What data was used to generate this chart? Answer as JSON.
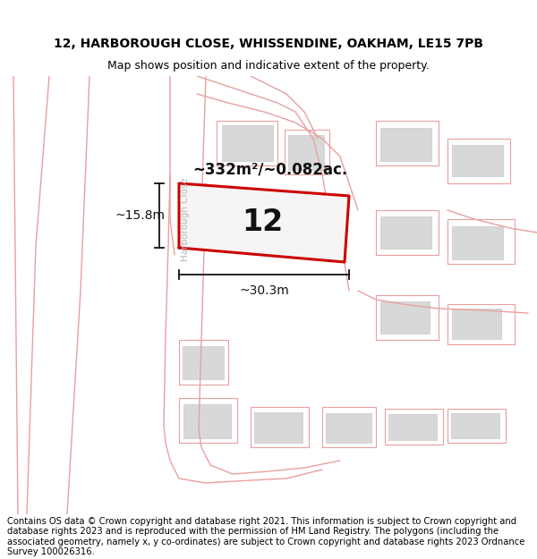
{
  "title_line1": "12, HARBOROUGH CLOSE, WHISSENDINE, OAKHAM, LE15 7PB",
  "title_line2": "Map shows position and indicative extent of the property.",
  "footer_text": "Contains OS data © Crown copyright and database right 2021. This information is subject to Crown copyright and database rights 2023 and is reproduced with the permission of HM Land Registry. The polygons (including the associated geometry, namely x, y co-ordinates) are subject to Crown copyright and database rights 2023 Ordnance Survey 100026316.",
  "area_label": "~332m²/~0.082ac.",
  "number_label": "12",
  "width_label": "~30.3m",
  "height_label": "~15.8m",
  "street_label": "Harborough Close",
  "title_fontsize": 10,
  "subtitle_fontsize": 9,
  "footer_fontsize": 7.2,
  "map_bg": "#ffffff",
  "building_color": "#d8d8d8",
  "road_line_color": "#e8a0a0",
  "plot_color": "#cc0000",
  "dim_color": "#111111",
  "street_label_color": "#b8b8b8"
}
